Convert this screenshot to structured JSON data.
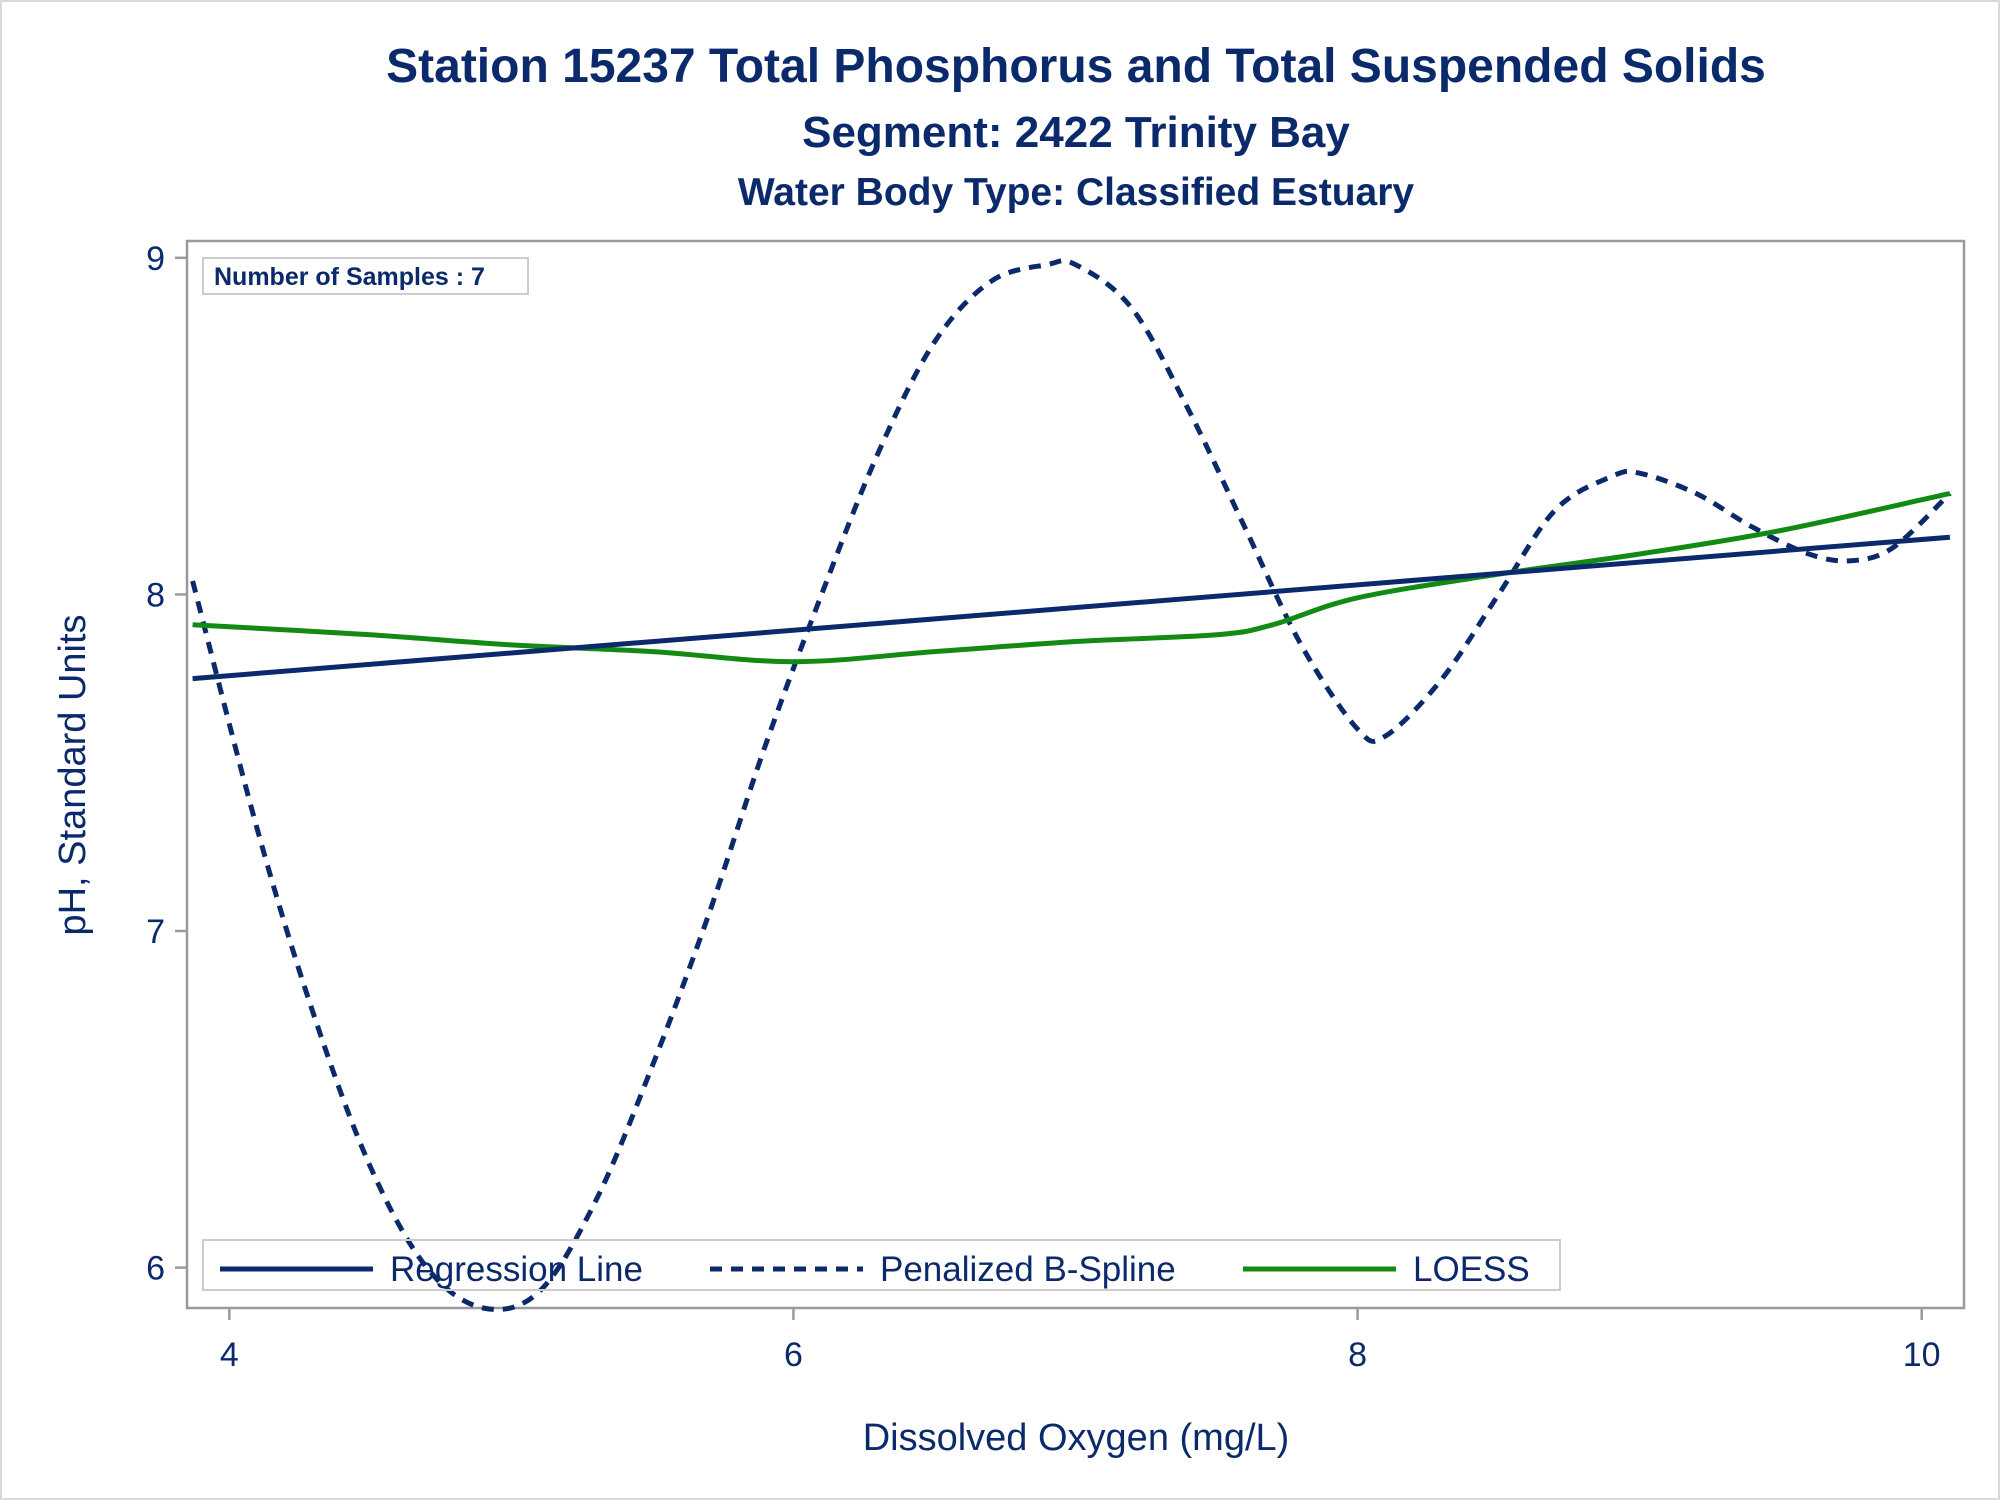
{
  "chart_data": {
    "type": "line",
    "title": "Station 15237  Total Phosphorus and Total Suspended Solids",
    "subtitle": "Segment: 2422  Trinity Bay",
    "subtitle2": "Water Body Type: Classified Estuary",
    "xlabel": "Dissolved Oxygen (mg/L)",
    "ylabel": "pH, Standard Units",
    "xlim": [
      3.85,
      10.15
    ],
    "ylim": [
      5.88,
      9.05
    ],
    "xticks": [
      4,
      6,
      8,
      10
    ],
    "yticks": [
      6,
      7,
      8,
      9
    ],
    "xtick_labels": [
      "4",
      "6",
      "8",
      "10"
    ],
    "ytick_labels": [
      "6",
      "7",
      "8",
      "9"
    ],
    "grid": false,
    "inset_label": "Number of Samples : 7",
    "legend_position": "bottom-left inside",
    "series": [
      {
        "name": "Regression Line",
        "style": "solid",
        "color": "#0b2a6b",
        "x": [
          3.87,
          10.1
        ],
        "y": [
          7.75,
          8.17
        ]
      },
      {
        "name": "Penalized B-Spline",
        "style": "dashed",
        "color": "#0b2a6b",
        "x": [
          3.87,
          4.1,
          4.3,
          4.5,
          4.7,
          4.9,
          5.1,
          5.3,
          5.5,
          5.7,
          5.9,
          6.1,
          6.3,
          6.5,
          6.7,
          6.9,
          7.0,
          7.2,
          7.4,
          7.6,
          7.8,
          8.0,
          8.1,
          8.3,
          8.5,
          8.7,
          8.9,
          9.0,
          9.2,
          9.4,
          9.6,
          9.75,
          9.9,
          10.1
        ],
        "y": [
          8.04,
          7.3,
          6.75,
          6.3,
          6.0,
          5.88,
          5.93,
          6.2,
          6.6,
          7.05,
          7.55,
          8.0,
          8.42,
          8.75,
          8.93,
          8.98,
          8.98,
          8.85,
          8.55,
          8.2,
          7.85,
          7.6,
          7.58,
          7.75,
          8.0,
          8.25,
          8.35,
          8.36,
          8.3,
          8.2,
          8.12,
          8.1,
          8.14,
          8.3
        ]
      },
      {
        "name": "LOESS",
        "style": "solid",
        "color": "#138a13",
        "x": [
          3.87,
          4.5,
          5.0,
          5.5,
          6.0,
          6.5,
          7.0,
          7.5,
          7.7,
          8.0,
          8.5,
          9.0,
          9.5,
          10.1
        ],
        "y": [
          7.91,
          7.88,
          7.85,
          7.83,
          7.8,
          7.83,
          7.86,
          7.88,
          7.91,
          7.99,
          8.06,
          8.12,
          8.19,
          8.3
        ]
      }
    ]
  },
  "colors": {
    "text": "#0b2a6b",
    "axis": "#9a9a9a",
    "frame": "#d9d9d9",
    "regression": "#0b2a6b",
    "spline": "#0b2a6b",
    "loess": "#138a13"
  }
}
